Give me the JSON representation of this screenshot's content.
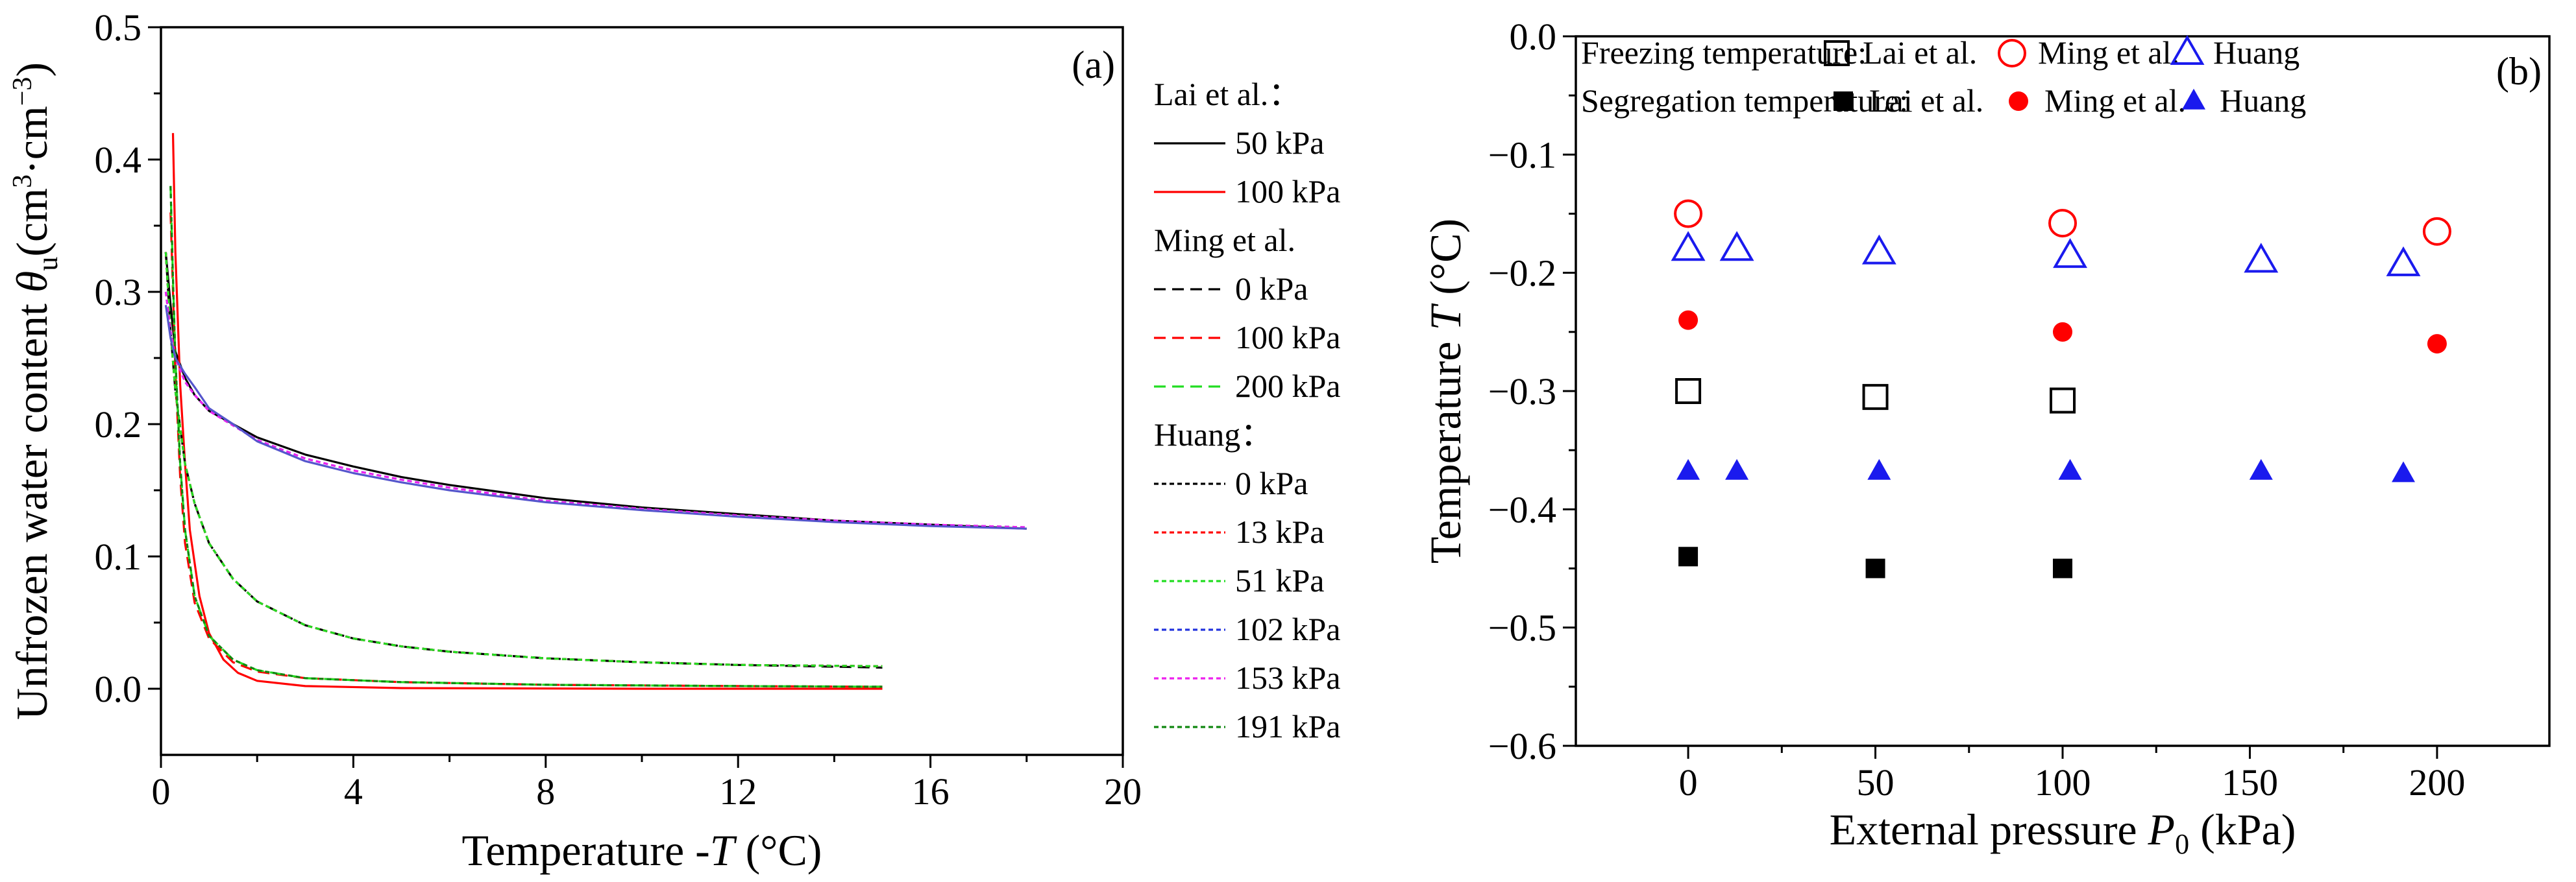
{
  "chart_data": [
    {
      "type": "line",
      "panel_label": "(a)",
      "xlabel": "Temperature -T (°C)",
      "xlabel_parts": [
        "Temperature -",
        "T",
        " (°C)"
      ],
      "ylabel": "Unfrozen water content θu(cm3·cm−3)",
      "ylabel_parts": [
        "Unfrozen water content ",
        "θ",
        "u",
        "(cm",
        "3",
        "·cm",
        "−3",
        ")"
      ],
      "xlim": [
        0,
        20
      ],
      "ylim": [
        -0.05,
        0.5
      ],
      "xticks": [
        0,
        4,
        8,
        12,
        16,
        20
      ],
      "yticks": [
        0.0,
        0.1,
        0.2,
        0.3,
        0.4,
        0.5
      ],
      "ytick_labels": [
        "0.0",
        "0.1",
        "0.2",
        "0.3",
        "0.4",
        "0.5"
      ],
      "legend_position": "outside-right",
      "legend_groups": [
        {
          "title": "Lai et al.：",
          "items": [
            "50 kPa",
            "100 kPa"
          ]
        },
        {
          "title": "Ming et al.",
          "items": [
            "0 kPa",
            "100 kPa",
            "200 kPa"
          ]
        },
        {
          "title": "Huang：",
          "items": [
            "0 kPa",
            "13 kPa",
            "51 kPa",
            "102 kPa",
            "153 kPa",
            "191 kPa"
          ]
        }
      ],
      "series": [
        {
          "name": "Lai et al. 50 kPa",
          "group": "Lai et al.",
          "color": "#000000",
          "dash": "solid",
          "x": [
            0.1,
            0.2,
            0.3,
            0.5,
            0.7,
            1.0,
            1.5,
            2,
            3,
            4,
            5,
            6,
            8,
            10,
            12,
            14,
            16,
            18
          ],
          "y": [
            0.33,
            0.29,
            0.255,
            0.235,
            0.222,
            0.21,
            0.2,
            0.19,
            0.177,
            0.168,
            0.16,
            0.154,
            0.144,
            0.137,
            0.132,
            0.127,
            0.124,
            0.121
          ]
        },
        {
          "name": "Lai et al. 100 kPa",
          "group": "Lai et al.",
          "color": "#ff0000",
          "dash": "solid",
          "x": [
            0.25,
            0.3,
            0.4,
            0.5,
            0.6,
            0.8,
            1.0,
            1.3,
            1.6,
            2,
            3,
            5,
            10,
            15
          ],
          "y": [
            0.42,
            0.33,
            0.23,
            0.17,
            0.12,
            0.07,
            0.042,
            0.022,
            0.012,
            0.006,
            0.002,
            0.0005,
            0.0,
            0.0
          ]
        },
        {
          "name": "Ming et al. 0 kPa",
          "group": "Ming et al.",
          "color": "#000000",
          "dash": "dashed",
          "x": [
            0.1,
            0.2,
            0.3,
            0.5,
            0.7,
            1.0,
            1.5,
            2,
            3,
            4,
            5,
            6,
            8,
            10,
            12,
            15
          ],
          "y": [
            0.33,
            0.27,
            0.225,
            0.17,
            0.14,
            0.11,
            0.083,
            0.066,
            0.048,
            0.038,
            0.032,
            0.028,
            0.023,
            0.02,
            0.018,
            0.016
          ]
        },
        {
          "name": "Ming et al. 100 kPa",
          "group": "Ming et al.",
          "color": "#ff0000",
          "dash": "dashed",
          "x": [
            0.2,
            0.25,
            0.3,
            0.4,
            0.5,
            0.7,
            1.0,
            1.5,
            2,
            3,
            5,
            8,
            12,
            15
          ],
          "y": [
            0.36,
            0.3,
            0.24,
            0.16,
            0.11,
            0.065,
            0.038,
            0.02,
            0.013,
            0.008,
            0.005,
            0.003,
            0.002,
            0.0015
          ]
        },
        {
          "name": "Ming et al. 200 kPa",
          "group": "Ming et al.",
          "color": "#22dd22",
          "dash": "dashed",
          "x": [
            0.2,
            0.25,
            0.3,
            0.4,
            0.5,
            0.7,
            1.0,
            1.5,
            2,
            3,
            5,
            8,
            12,
            15
          ],
          "y": [
            0.38,
            0.31,
            0.25,
            0.17,
            0.12,
            0.07,
            0.04,
            0.022,
            0.014,
            0.008,
            0.005,
            0.003,
            0.002,
            0.0015
          ]
        },
        {
          "name": "Huang 0 kPa",
          "group": "Huang",
          "color": "#000000",
          "dash": "dotted",
          "x": [
            0.1,
            0.2,
            0.3,
            0.5,
            0.7,
            1.0,
            1.5,
            2,
            3,
            4,
            5,
            6,
            8,
            10,
            12,
            15
          ],
          "y": [
            0.33,
            0.27,
            0.225,
            0.17,
            0.14,
            0.11,
            0.083,
            0.066,
            0.048,
            0.038,
            0.032,
            0.028,
            0.023,
            0.02,
            0.018,
            0.017
          ]
        },
        {
          "name": "Huang 13 kPa",
          "group": "Huang",
          "color": "#ff0000",
          "dash": "dotted",
          "x": [
            0.1,
            0.2,
            0.3,
            0.5,
            0.7,
            1.0,
            1.5,
            2,
            3,
            4,
            5,
            6,
            8,
            10,
            12,
            15
          ],
          "y": [
            0.33,
            0.27,
            0.225,
            0.17,
            0.14,
            0.11,
            0.083,
            0.066,
            0.048,
            0.038,
            0.032,
            0.028,
            0.023,
            0.02,
            0.018,
            0.017
          ]
        },
        {
          "name": "Huang 51 kPa",
          "group": "Huang",
          "color": "#22dd22",
          "dash": "dotted",
          "x": [
            0.1,
            0.2,
            0.3,
            0.5,
            0.7,
            1.0,
            1.5,
            2,
            3,
            4,
            5,
            6,
            8,
            10,
            12,
            15
          ],
          "y": [
            0.33,
            0.27,
            0.225,
            0.17,
            0.14,
            0.11,
            0.083,
            0.066,
            0.048,
            0.038,
            0.032,
            0.028,
            0.023,
            0.02,
            0.018,
            0.017
          ]
        },
        {
          "name": "Huang 102 kPa",
          "group": "Huang",
          "color": "#2233dd",
          "dash": "dotted",
          "x": [
            0.1,
            0.2,
            0.3,
            0.5,
            0.7,
            1.0,
            1.5,
            2,
            3,
            4,
            5,
            6,
            8,
            10,
            12,
            14,
            16,
            18
          ],
          "y": [
            0.3,
            0.27,
            0.25,
            0.232,
            0.222,
            0.21,
            0.199,
            0.188,
            0.174,
            0.165,
            0.158,
            0.152,
            0.142,
            0.136,
            0.131,
            0.127,
            0.124,
            0.122
          ]
        },
        {
          "name": "Huang 153 kPa",
          "group": "Huang",
          "color": "#ee22ee",
          "dash": "dotted",
          "x": [
            0.1,
            0.2,
            0.3,
            0.5,
            0.7,
            1.0,
            1.5,
            2,
            3,
            4,
            5,
            6,
            8,
            10,
            12,
            14,
            16,
            18
          ],
          "y": [
            0.3,
            0.27,
            0.25,
            0.232,
            0.222,
            0.21,
            0.199,
            0.188,
            0.174,
            0.165,
            0.158,
            0.152,
            0.142,
            0.136,
            0.131,
            0.127,
            0.124,
            0.122
          ]
        },
        {
          "name": "Huang 191 kPa",
          "group": "Huang",
          "color": "#118811",
          "dash": "dotted",
          "x": [
            0.2,
            0.25,
            0.3,
            0.4,
            0.5,
            0.7,
            1.0,
            1.5,
            2,
            3,
            5,
            8,
            12,
            15
          ],
          "y": [
            0.38,
            0.31,
            0.25,
            0.17,
            0.12,
            0.07,
            0.04,
            0.022,
            0.014,
            0.008,
            0.005,
            0.003,
            0.002,
            0.0015
          ]
        },
        {
          "name": "Huang 102 kPa (upper trace)",
          "group": "Huang",
          "color": "#5555cc",
          "dash": "solid",
          "in_legend": false,
          "x": [
            0.1,
            0.2,
            0.3,
            0.5,
            0.7,
            1.0,
            1.5,
            2,
            3,
            4,
            5,
            6,
            8,
            10,
            12,
            14,
            16,
            18
          ],
          "y": [
            0.29,
            0.265,
            0.25,
            0.238,
            0.228,
            0.212,
            0.2,
            0.187,
            0.172,
            0.163,
            0.156,
            0.15,
            0.141,
            0.135,
            0.13,
            0.126,
            0.123,
            0.121
          ]
        }
      ]
    },
    {
      "type": "scatter",
      "panel_label": "(b)",
      "xlabel": "External pressure P0 (kPa)",
      "xlabel_parts": [
        "External pressure ",
        "P",
        "0",
        " (kPa)"
      ],
      "ylabel": "Temperature T (°C)",
      "ylabel_parts": [
        "Temperature ",
        "T",
        " (°C)"
      ],
      "xlim": [
        -30,
        230
      ],
      "ylim": [
        -0.6,
        0.0
      ],
      "xticks": [
        0,
        50,
        100,
        150,
        200
      ],
      "yticks": [
        0.0,
        -0.1,
        -0.2,
        -0.3,
        -0.4,
        -0.5,
        -0.6
      ],
      "ytick_labels": [
        "0.0",
        "−0.1",
        "−0.2",
        "−0.3",
        "−0.4",
        "−0.5",
        "−0.6"
      ],
      "legend_position": "top-left (inside)",
      "legend_rows": [
        {
          "label": "Freezing temperature:",
          "entries": [
            {
              "marker": "open-square",
              "color": "#000000",
              "label": "Lai et al."
            },
            {
              "marker": "open-circle",
              "color": "#ff0000",
              "label": "Ming et al."
            },
            {
              "marker": "open-triangle",
              "color": "#1a1aee",
              "label": "Huang"
            }
          ]
        },
        {
          "label": "Segregation temperature:",
          "entries": [
            {
              "marker": "filled-square",
              "color": "#000000",
              "label": "Lai et al."
            },
            {
              "marker": "filled-circle",
              "color": "#ff0000",
              "label": "Ming et al."
            },
            {
              "marker": "filled-triangle",
              "color": "#1a1aee",
              "label": "Huang"
            }
          ]
        }
      ],
      "series": [
        {
          "name": "Freezing temperature: Lai et al.",
          "marker": "open-square",
          "color": "#000000",
          "x": [
            0,
            50,
            100
          ],
          "y": [
            -0.3,
            -0.305,
            -0.308
          ]
        },
        {
          "name": "Freezing temperature: Ming et al.",
          "marker": "open-circle",
          "color": "#ff0000",
          "x": [
            0,
            100,
            200
          ],
          "y": [
            -0.15,
            -0.158,
            -0.165
          ]
        },
        {
          "name": "Freezing temperature: Huang",
          "marker": "open-triangle",
          "color": "#1a1aee",
          "x": [
            0,
            13,
            51,
            102,
            153,
            191
          ],
          "y": [
            -0.18,
            -0.18,
            -0.183,
            -0.186,
            -0.19,
            -0.193
          ]
        },
        {
          "name": "Segregation temperature: Lai et al.",
          "marker": "filled-square",
          "color": "#000000",
          "x": [
            0,
            50,
            100
          ],
          "y": [
            -0.44,
            -0.45,
            -0.45
          ]
        },
        {
          "name": "Segregation temperature: Ming et al.",
          "marker": "filled-circle",
          "color": "#ff0000",
          "x": [
            0,
            100,
            200
          ],
          "y": [
            -0.24,
            -0.25,
            -0.26
          ]
        },
        {
          "name": "Segregation temperature: Huang",
          "marker": "filled-triangle",
          "color": "#1a1aee",
          "x": [
            0,
            13,
            51,
            102,
            153,
            191
          ],
          "y": [
            -0.368,
            -0.368,
            -0.368,
            -0.368,
            -0.368,
            -0.37
          ]
        }
      ]
    }
  ]
}
